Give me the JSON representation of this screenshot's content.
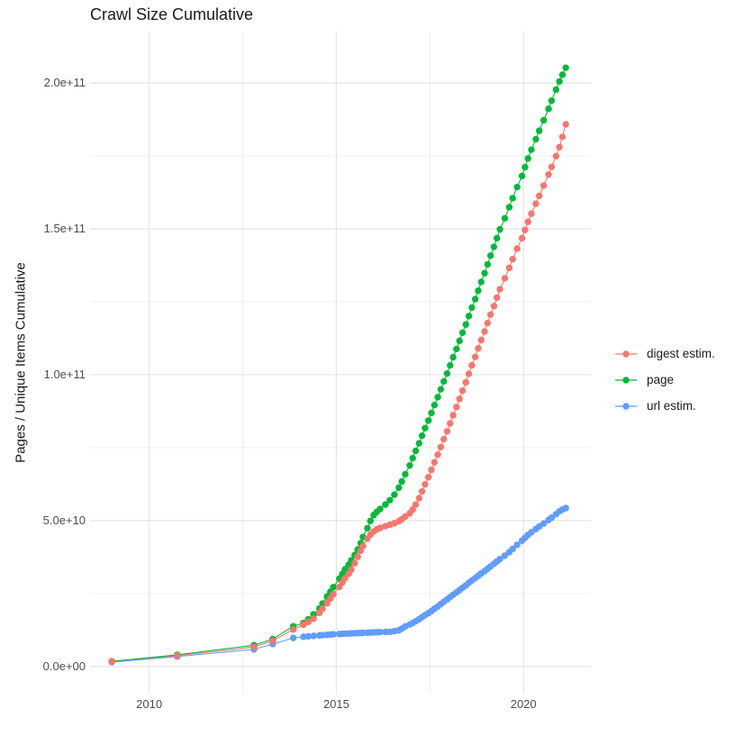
{
  "title": "Crawl Size Cumulative",
  "axes": {
    "y_title": "Pages / Unique Items Cumulative",
    "y_major_ticks": [
      {
        "v": 0,
        "label": "0.0e+00"
      },
      {
        "v": 50,
        "label": "5.0e+10"
      },
      {
        "v": 100,
        "label": "1.0e+11"
      },
      {
        "v": 150,
        "label": "1.5e+11"
      },
      {
        "v": 200,
        "label": "2.0e+11"
      }
    ],
    "y_minor_ticks": [
      25,
      75,
      125,
      175
    ],
    "x_major_ticks": [
      {
        "v": 2010,
        "label": "2010"
      },
      {
        "v": 2015,
        "label": "2015"
      },
      {
        "v": 2020,
        "label": "2020"
      }
    ],
    "x_minor_ticks": [
      2012.5,
      2017.5
    ]
  },
  "colors": {
    "digest": "#F8766D",
    "page": "#00BA38",
    "url": "#619CFF",
    "grid_major": "#E4E4E4",
    "grid_minor": "#EFEFEF",
    "background": "#FFFFFF",
    "tick_text": "#4D4D4D",
    "title_text": "#1A1A1A"
  },
  "legend": [
    {
      "id": "digest",
      "label": "digest estim."
    },
    {
      "id": "page",
      "label": "page"
    },
    {
      "id": "url",
      "label": "url estim."
    }
  ],
  "chart_data": {
    "type": "scatter",
    "mode": "points+line",
    "title": "Crawl Size Cumulative",
    "xlabel": "",
    "ylabel": "Pages / Unique Items Cumulative",
    "x_unit": "calendar year (decimal)",
    "y_unit": "cumulative count, in billions (1e9)",
    "x_domain": [
      2008.42,
      2021.8
    ],
    "y_domain_billions": [
      -9.3,
      217.6
    ],
    "grid": true,
    "legend_position": "right",
    "draw_order": [
      "digest",
      "page",
      "url"
    ],
    "point_order_top_to_bottom": [
      "digest",
      "page",
      "url"
    ],
    "series": [
      {
        "id": "digest",
        "name": "digest estim.",
        "points": [
          [
            2009.0,
            1.7
          ],
          [
            2010.75,
            3.7
          ],
          [
            2012.8,
            6.7
          ],
          [
            2013.3,
            8.8
          ],
          [
            2013.85,
            12.7
          ],
          [
            2014.12,
            14.3
          ],
          [
            2014.25,
            15.3
          ],
          [
            2014.39,
            16.4
          ],
          [
            2014.55,
            18.4
          ],
          [
            2014.63,
            19.8
          ],
          [
            2014.75,
            21.7
          ],
          [
            2014.84,
            23.3
          ],
          [
            2014.92,
            24.8
          ],
          [
            2015.08,
            27.3
          ],
          [
            2015.16,
            28.8
          ],
          [
            2015.23,
            30.2
          ],
          [
            2015.33,
            31.8
          ],
          [
            2015.4,
            33.2
          ],
          [
            2015.49,
            35.4
          ],
          [
            2015.57,
            37.6
          ],
          [
            2015.65,
            39.7
          ],
          [
            2015.71,
            41.3
          ],
          [
            2015.83,
            43.8
          ],
          [
            2015.91,
            45.2
          ],
          [
            2016.0,
            46.3
          ],
          [
            2016.08,
            47.0
          ],
          [
            2016.17,
            47.5
          ],
          [
            2016.31,
            48.1
          ],
          [
            2016.43,
            48.6
          ],
          [
            2016.55,
            49.1
          ],
          [
            2016.67,
            49.8
          ],
          [
            2016.75,
            50.5
          ],
          [
            2016.84,
            51.4
          ],
          [
            2016.96,
            52.5
          ],
          [
            2017.04,
            53.8
          ],
          [
            2017.12,
            55.5
          ],
          [
            2017.21,
            57.7
          ],
          [
            2017.29,
            60.0
          ],
          [
            2017.37,
            62.4
          ],
          [
            2017.46,
            64.9
          ],
          [
            2017.54,
            67.4
          ],
          [
            2017.62,
            70.0
          ],
          [
            2017.71,
            72.6
          ],
          [
            2017.79,
            75.2
          ],
          [
            2017.87,
            77.9
          ],
          [
            2017.96,
            80.6
          ],
          [
            2018.04,
            83.3
          ],
          [
            2018.12,
            86.1
          ],
          [
            2018.21,
            88.9
          ],
          [
            2018.29,
            91.7
          ],
          [
            2018.37,
            94.5
          ],
          [
            2018.46,
            97.4
          ],
          [
            2018.54,
            100.3
          ],
          [
            2018.62,
            103.2
          ],
          [
            2018.71,
            106.1
          ],
          [
            2018.79,
            109.0
          ],
          [
            2018.87,
            111.9
          ],
          [
            2018.96,
            114.8
          ],
          [
            2019.04,
            117.7
          ],
          [
            2019.12,
            120.6
          ],
          [
            2019.21,
            123.5
          ],
          [
            2019.29,
            126.4
          ],
          [
            2019.37,
            129.3
          ],
          [
            2019.5,
            133.0
          ],
          [
            2019.62,
            136.6
          ],
          [
            2019.71,
            139.6
          ],
          [
            2019.83,
            143.2
          ],
          [
            2019.96,
            146.8
          ],
          [
            2020.04,
            149.6
          ],
          [
            2020.12,
            152.4
          ],
          [
            2020.21,
            155.2
          ],
          [
            2020.33,
            158.6
          ],
          [
            2020.42,
            161.3
          ],
          [
            2020.54,
            164.8
          ],
          [
            2020.67,
            168.6
          ],
          [
            2020.75,
            171.2
          ],
          [
            2020.87,
            174.9
          ],
          [
            2020.96,
            178.0
          ],
          [
            2021.04,
            181.5
          ],
          [
            2021.13,
            185.8
          ]
        ]
      },
      {
        "id": "page",
        "name": "page",
        "points": [
          [
            2009.0,
            1.8
          ],
          [
            2010.75,
            4.0
          ],
          [
            2012.8,
            7.3
          ],
          [
            2013.3,
            9.4
          ],
          [
            2013.85,
            13.8
          ],
          [
            2014.12,
            14.9
          ],
          [
            2014.25,
            16.2
          ],
          [
            2014.39,
            17.9
          ],
          [
            2014.55,
            19.9
          ],
          [
            2014.63,
            21.6
          ],
          [
            2014.75,
            24.0
          ],
          [
            2014.84,
            25.6
          ],
          [
            2014.92,
            27.2
          ],
          [
            2015.08,
            30.1
          ],
          [
            2015.16,
            31.7
          ],
          [
            2015.23,
            33.3
          ],
          [
            2015.33,
            34.9
          ],
          [
            2015.4,
            36.4
          ],
          [
            2015.49,
            38.2
          ],
          [
            2015.57,
            40.1
          ],
          [
            2015.65,
            42.3
          ],
          [
            2015.71,
            44.4
          ],
          [
            2015.83,
            47.4
          ],
          [
            2015.91,
            49.9
          ],
          [
            2016.0,
            51.9
          ],
          [
            2016.08,
            53.0
          ],
          [
            2016.17,
            54.0
          ],
          [
            2016.31,
            55.5
          ],
          [
            2016.43,
            57.0
          ],
          [
            2016.55,
            58.9
          ],
          [
            2016.67,
            61.3
          ],
          [
            2016.75,
            63.4
          ],
          [
            2016.84,
            65.9
          ],
          [
            2016.96,
            68.9
          ],
          [
            2017.04,
            71.4
          ],
          [
            2017.12,
            73.9
          ],
          [
            2017.21,
            76.5
          ],
          [
            2017.29,
            79.1
          ],
          [
            2017.37,
            81.7
          ],
          [
            2017.46,
            84.3
          ],
          [
            2017.54,
            86.9
          ],
          [
            2017.62,
            89.6
          ],
          [
            2017.71,
            92.3
          ],
          [
            2017.79,
            95.0
          ],
          [
            2017.87,
            97.7
          ],
          [
            2017.96,
            100.4
          ],
          [
            2018.04,
            103.2
          ],
          [
            2018.12,
            106.0
          ],
          [
            2018.21,
            108.8
          ],
          [
            2018.29,
            111.6
          ],
          [
            2018.37,
            114.4
          ],
          [
            2018.46,
            117.2
          ],
          [
            2018.54,
            120.1
          ],
          [
            2018.62,
            123.0
          ],
          [
            2018.71,
            125.9
          ],
          [
            2018.79,
            128.8
          ],
          [
            2018.87,
            131.8
          ],
          [
            2018.96,
            134.8
          ],
          [
            2019.04,
            137.8
          ],
          [
            2019.12,
            140.8
          ],
          [
            2019.21,
            143.8
          ],
          [
            2019.29,
            146.8
          ],
          [
            2019.37,
            149.8
          ],
          [
            2019.5,
            153.6
          ],
          [
            2019.62,
            157.4
          ],
          [
            2019.71,
            160.5
          ],
          [
            2019.83,
            164.3
          ],
          [
            2019.96,
            168.1
          ],
          [
            2020.04,
            171.1
          ],
          [
            2020.12,
            174.1
          ],
          [
            2020.21,
            177.1
          ],
          [
            2020.33,
            180.7
          ],
          [
            2020.42,
            183.6
          ],
          [
            2020.54,
            187.2
          ],
          [
            2020.67,
            191.1
          ],
          [
            2020.75,
            193.9
          ],
          [
            2020.87,
            197.7
          ],
          [
            2020.96,
            200.5
          ],
          [
            2021.04,
            202.8
          ],
          [
            2021.13,
            205.2
          ]
        ]
      },
      {
        "id": "url",
        "name": "url estim.",
        "points": [
          [
            2009.0,
            1.5
          ],
          [
            2010.75,
            3.4
          ],
          [
            2012.8,
            5.9
          ],
          [
            2013.3,
            7.7
          ],
          [
            2013.85,
            9.8
          ],
          [
            2014.12,
            10.2
          ],
          [
            2014.25,
            10.35
          ],
          [
            2014.39,
            10.5
          ],
          [
            2014.55,
            10.65
          ],
          [
            2014.63,
            10.75
          ],
          [
            2014.75,
            10.85
          ],
          [
            2014.84,
            10.95
          ],
          [
            2014.92,
            11.05
          ],
          [
            2015.08,
            11.15
          ],
          [
            2015.16,
            11.2
          ],
          [
            2015.23,
            11.25
          ],
          [
            2015.33,
            11.3
          ],
          [
            2015.4,
            11.35
          ],
          [
            2015.49,
            11.4
          ],
          [
            2015.57,
            11.45
          ],
          [
            2015.65,
            11.5
          ],
          [
            2015.71,
            11.55
          ],
          [
            2015.83,
            11.6
          ],
          [
            2015.91,
            11.65
          ],
          [
            2016.0,
            11.7
          ],
          [
            2016.08,
            11.75
          ],
          [
            2016.17,
            11.8
          ],
          [
            2016.31,
            11.85
          ],
          [
            2016.43,
            11.9
          ],
          [
            2016.55,
            12.1
          ],
          [
            2016.67,
            12.4
          ],
          [
            2016.75,
            13.0
          ],
          [
            2016.84,
            13.7
          ],
          [
            2016.96,
            14.4
          ],
          [
            2017.04,
            14.9
          ],
          [
            2017.12,
            15.5
          ],
          [
            2017.21,
            16.2
          ],
          [
            2017.29,
            16.9
          ],
          [
            2017.37,
            17.6
          ],
          [
            2017.46,
            18.3
          ],
          [
            2017.54,
            19.0
          ],
          [
            2017.62,
            19.8
          ],
          [
            2017.71,
            20.6
          ],
          [
            2017.79,
            21.4
          ],
          [
            2017.87,
            22.2
          ],
          [
            2017.96,
            23.0
          ],
          [
            2018.04,
            23.8
          ],
          [
            2018.12,
            24.6
          ],
          [
            2018.21,
            25.4
          ],
          [
            2018.29,
            26.2
          ],
          [
            2018.37,
            27.0
          ],
          [
            2018.46,
            27.8
          ],
          [
            2018.54,
            28.7
          ],
          [
            2018.62,
            29.5
          ],
          [
            2018.71,
            30.3
          ],
          [
            2018.79,
            31.1
          ],
          [
            2018.87,
            31.9
          ],
          [
            2018.96,
            32.7
          ],
          [
            2019.04,
            33.5
          ],
          [
            2019.12,
            34.3
          ],
          [
            2019.21,
            35.2
          ],
          [
            2019.29,
            36.0
          ],
          [
            2019.37,
            36.8
          ],
          [
            2019.5,
            38.0
          ],
          [
            2019.62,
            39.2
          ],
          [
            2019.71,
            40.3
          ],
          [
            2019.83,
            41.7
          ],
          [
            2019.96,
            43.1
          ],
          [
            2020.04,
            44.1
          ],
          [
            2020.12,
            45.1
          ],
          [
            2020.21,
            46.0
          ],
          [
            2020.33,
            47.1
          ],
          [
            2020.42,
            48.0
          ],
          [
            2020.54,
            49.0
          ],
          [
            2020.67,
            50.2
          ],
          [
            2020.75,
            51.0
          ],
          [
            2020.87,
            52.2
          ],
          [
            2020.96,
            53.2
          ],
          [
            2021.04,
            53.8
          ],
          [
            2021.13,
            54.3
          ]
        ]
      }
    ]
  }
}
